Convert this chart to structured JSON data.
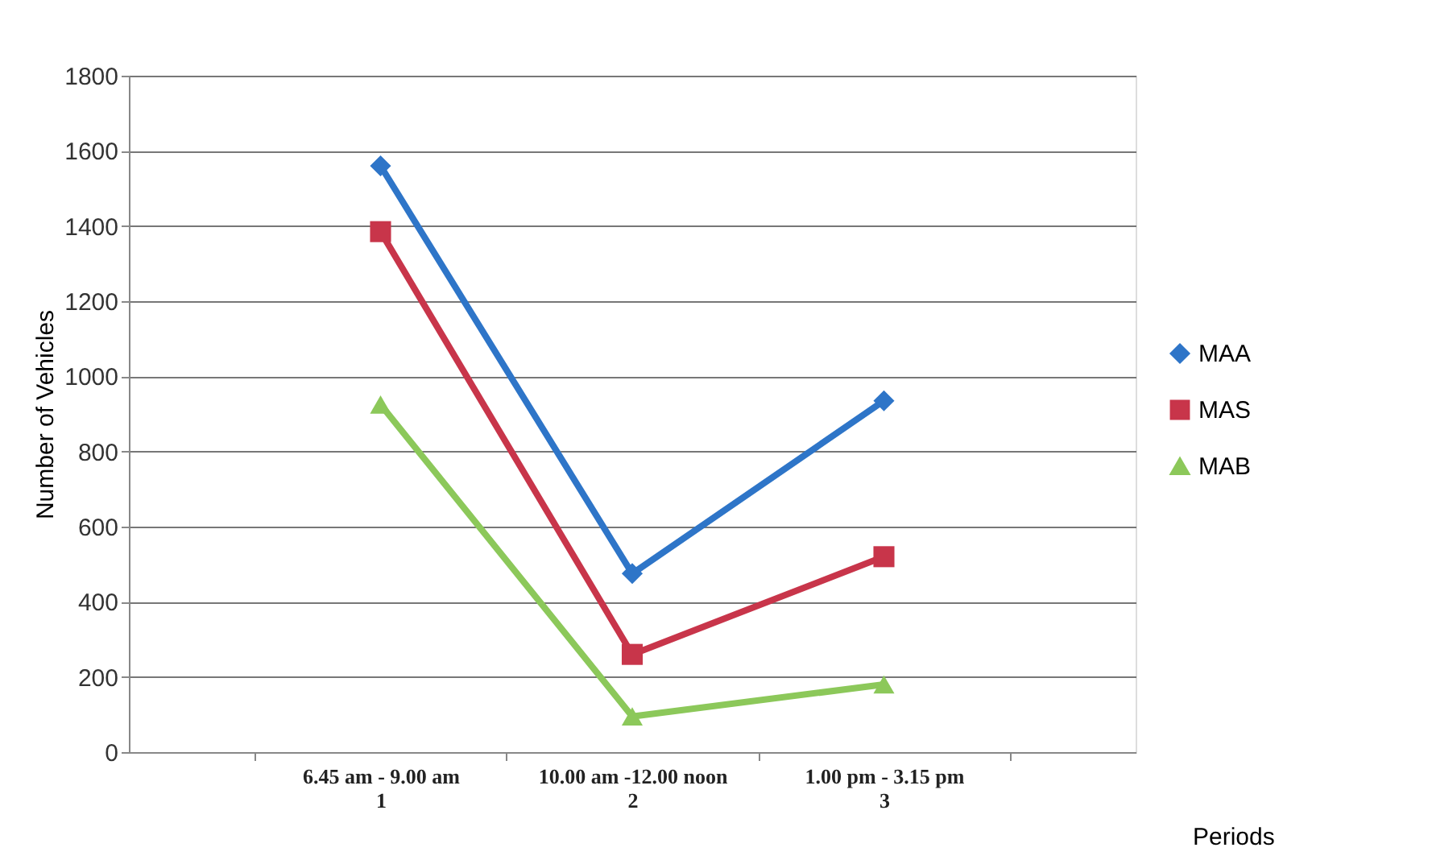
{
  "chart_data": {
    "type": "line",
    "ylabel": "Number of Vehicles",
    "xlabel": "Periods",
    "categories": [
      "6.45 am - 9.00 am\n1",
      "10.00 am -12.00 noon\n2",
      "1.00 pm - 3.15 pm\n3"
    ],
    "series": [
      {
        "name": "MAA",
        "color": "#2e75c8",
        "marker": "diamond",
        "values": [
          1560,
          475,
          935
        ]
      },
      {
        "name": "MAS",
        "color": "#c8354a",
        "marker": "square",
        "values": [
          1385,
          260,
          520
        ]
      },
      {
        "name": "MAB",
        "color": "#8cc85a",
        "marker": "triangle",
        "values": [
          925,
          95,
          180
        ]
      }
    ],
    "ylim": [
      0,
      1800
    ],
    "yticks": [
      0,
      200,
      400,
      600,
      800,
      1000,
      1200,
      1400,
      1600,
      1800
    ],
    "grid": "y",
    "legend": "right",
    "line_style": "solid"
  }
}
